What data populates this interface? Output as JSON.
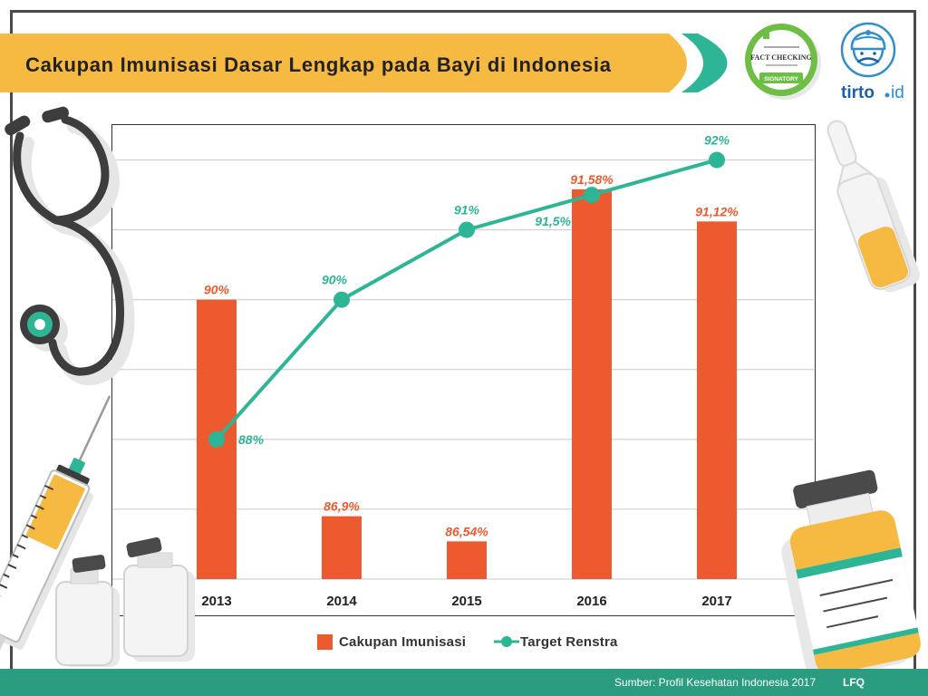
{
  "chart_data": {
    "type": "bar",
    "title": "Cakupan Imunisasi Dasar Lengkap pada Bayi di Indonesia",
    "xlabel": "",
    "ylabel": "",
    "categories": [
      "2013",
      "2014",
      "2015",
      "2016",
      "2017"
    ],
    "ylim": [
      86,
      92.5
    ],
    "grid": true,
    "legend": "bottom-center",
    "series": [
      {
        "name": "Cakupan Imunisasi",
        "type": "bar",
        "values": [
          90,
          86.9,
          86.54,
          91.58,
          91.12
        ],
        "labels": [
          "90%",
          "86,9%",
          "86,54%",
          "91,58%",
          "91,12%"
        ],
        "color": "#EE5A2F"
      },
      {
        "name": "Target Renstra",
        "type": "line",
        "values": [
          88,
          90,
          91,
          91.5,
          92
        ],
        "labels": [
          "88%",
          "90%",
          "91%",
          "91,5%",
          "92%"
        ],
        "color": "#2EB596"
      }
    ]
  },
  "logos": {
    "ifcn_badge": {
      "heading": "FACT CHECKING",
      "ribbon": "SIGNATORY"
    },
    "tirto": {
      "wordmark": "tirto",
      "suffix": "id"
    }
  },
  "footer": {
    "source": "Sumber: Profil Kesehatan Indonesia 2017",
    "author": "LFQ"
  },
  "colors": {
    "banner": "#F6B941",
    "teal": "#2EB596",
    "footer": "#2A9C80",
    "frame": "#4A4A4A"
  },
  "illustrations": [
    "stethoscope",
    "syringe",
    "vial",
    "ampoule",
    "medicine-bottle"
  ]
}
